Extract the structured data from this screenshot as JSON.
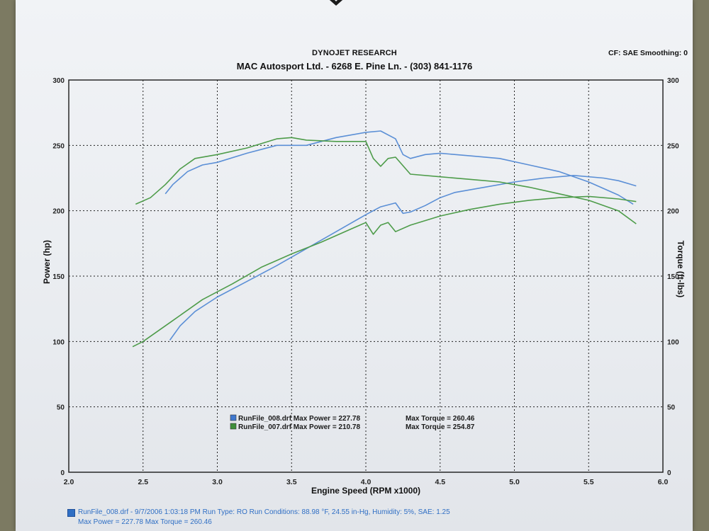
{
  "header": {
    "title": "DYNOJET RESEARCH",
    "subtitle": "MAC Autosport Ltd. - 6268 E. Pine Ln. - (303) 841-1176",
    "cf": "CF: SAE  Smoothing: 0"
  },
  "colors": {
    "blue": "#5b8fd6",
    "green": "#4e9c4a",
    "grid": "#222222"
  },
  "legend": [
    {
      "label": "RunFile_008.drf Max Power = 227.78",
      "torque": "Max Torque = 260.46",
      "color": "#3f78cf"
    },
    {
      "label": "RunFile_007.drf Max Power = 210.78",
      "torque": "Max Torque = 254.87",
      "color": "#3f8f3a"
    }
  ],
  "footer": {
    "line1": "RunFile_008.drf - 9/7/2006 1:03:18 PM  Run Type: RO  Run Conditions: 88.98 °F, 24.55 in-Hg,  Humidity:  5%, SAE: 1.25",
    "line2": "Max Power = 227.78  Max Torque = 260.46"
  },
  "chart_data": {
    "type": "line",
    "title": "DYNOJET RESEARCH",
    "xlabel": "Engine Speed (RPM x1000)",
    "ylabel": "Power (hp)",
    "y2label": "Torque (ft-lbs)",
    "xlim": [
      2.0,
      6.0
    ],
    "ylim": [
      0,
      300
    ],
    "y2lim": [
      0,
      300
    ],
    "xticks": [
      "2.0",
      "2.5",
      "3.0",
      "3.5",
      "4.0",
      "4.5",
      "5.0",
      "5.5",
      "6.0"
    ],
    "yticks": [
      "0",
      "50",
      "100",
      "150",
      "200",
      "250",
      "300"
    ],
    "y2ticks": [
      "0",
      "50",
      "100",
      "150",
      "200",
      "250",
      "300"
    ],
    "grid": true,
    "legend_position": "bottom-center",
    "series": [
      {
        "name": "RunFile_008.drf",
        "quantity": "power",
        "color": "#5b8fd6",
        "x": [
          2.68,
          2.75,
          2.85,
          3.0,
          3.2,
          3.4,
          3.6,
          3.8,
          4.0,
          4.1,
          4.2,
          4.25,
          4.3,
          4.4,
          4.5,
          4.6,
          4.8,
          5.0,
          5.2,
          5.4,
          5.6,
          5.7,
          5.82
        ],
        "y": [
          101,
          112,
          123,
          134,
          146,
          158,
          171,
          184,
          197,
          203,
          206,
          198,
          199,
          204,
          210,
          214,
          218,
          222,
          225,
          227,
          225,
          223,
          219
        ]
      },
      {
        "name": "RunFile_008.drf",
        "quantity": "torque",
        "color": "#5b8fd6",
        "x": [
          2.65,
          2.7,
          2.8,
          2.9,
          3.0,
          3.2,
          3.4,
          3.6,
          3.8,
          4.0,
          4.1,
          4.2,
          4.25,
          4.3,
          4.4,
          4.5,
          4.7,
          4.9,
          5.1,
          5.3,
          5.5,
          5.7,
          5.8
        ],
        "y": [
          213,
          220,
          230,
          235,
          237,
          244,
          250,
          250,
          256,
          260,
          261,
          255,
          243,
          240,
          243,
          244,
          242,
          240,
          235,
          230,
          222,
          212,
          205
        ]
      },
      {
        "name": "RunFile_007.drf",
        "quantity": "power",
        "color": "#4e9c4a",
        "x": [
          2.43,
          2.5,
          2.7,
          2.9,
          3.1,
          3.3,
          3.5,
          3.7,
          3.9,
          4.0,
          4.05,
          4.1,
          4.15,
          4.2,
          4.3,
          4.5,
          4.7,
          4.9,
          5.1,
          5.3,
          5.5,
          5.7,
          5.82
        ],
        "y": [
          96,
          100,
          116,
          132,
          144,
          157,
          167,
          176,
          186,
          191,
          182,
          189,
          191,
          184,
          189,
          196,
          201,
          205,
          208,
          210,
          211,
          209,
          207
        ]
      },
      {
        "name": "RunFile_007.drf",
        "quantity": "torque",
        "color": "#4e9c4a",
        "x": [
          2.45,
          2.55,
          2.65,
          2.75,
          2.85,
          3.0,
          3.2,
          3.4,
          3.5,
          3.6,
          3.8,
          4.0,
          4.05,
          4.1,
          4.15,
          4.2,
          4.3,
          4.5,
          4.7,
          4.9,
          5.1,
          5.3,
          5.5,
          5.7,
          5.82
        ],
        "y": [
          205,
          210,
          220,
          232,
          240,
          243,
          248,
          255,
          256,
          254,
          253,
          253,
          240,
          234,
          240,
          241,
          228,
          226,
          224,
          222,
          218,
          213,
          208,
          200,
          190
        ]
      }
    ]
  }
}
